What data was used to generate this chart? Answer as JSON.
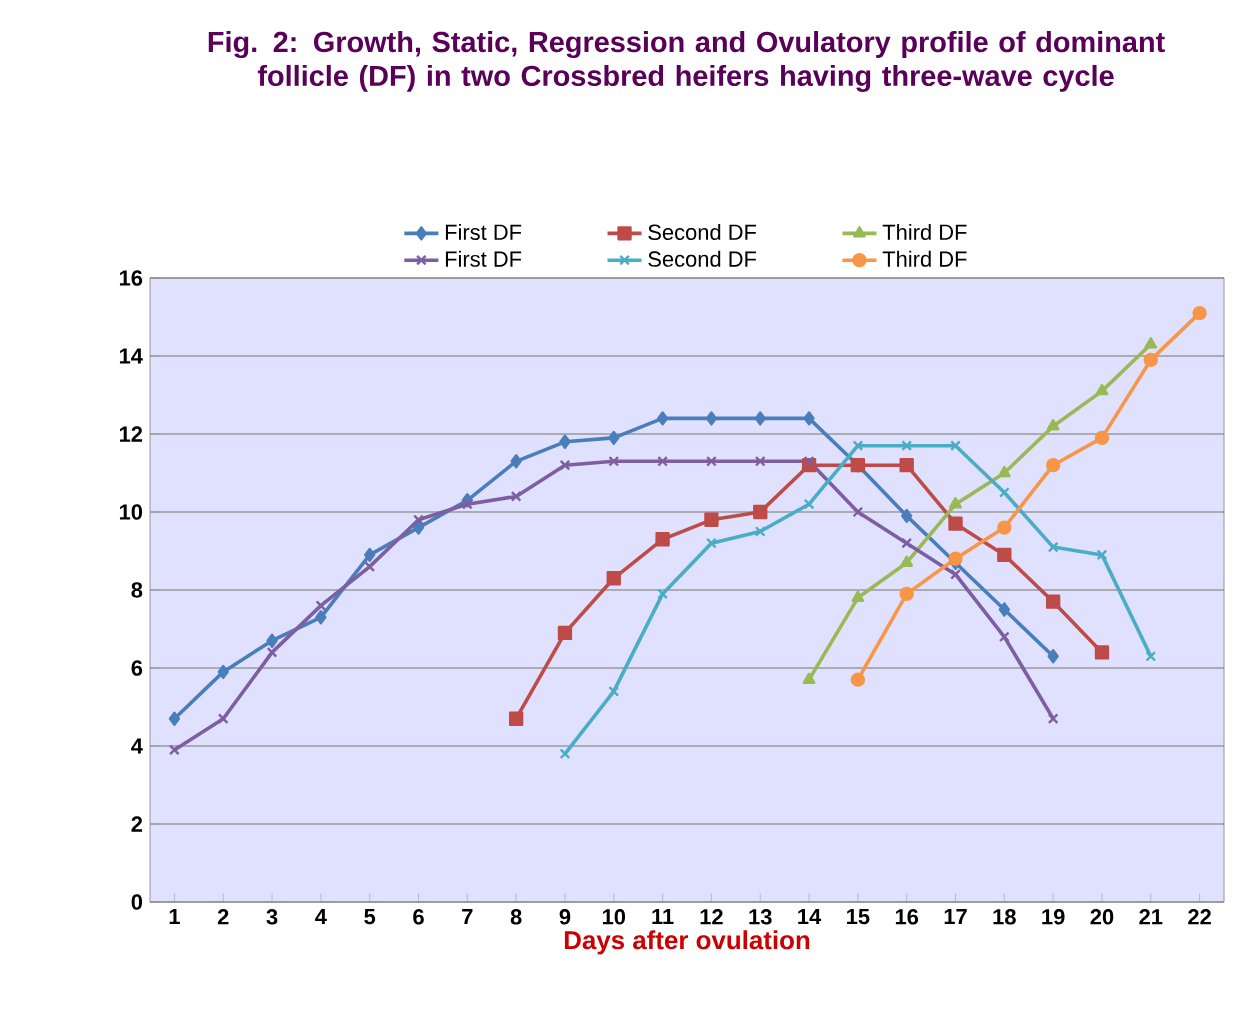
{
  "chart_data": {
    "type": "line",
    "title": "Fig. 2: Growth, Static, Regression and Ovulatory profile of dominant follicle (DF) in two Crossbred heifers having three-wave cycle",
    "xlabel": "Days after ovulation",
    "categories": [
      "1",
      "2",
      "3",
      "4",
      "5",
      "6",
      "7",
      "8",
      "9",
      "10",
      "11",
      "12",
      "13",
      "14",
      "15",
      "16",
      "17",
      "18",
      "19",
      "20",
      "21",
      "22"
    ],
    "ylim": [
      0,
      16
    ],
    "yticks": [
      0,
      2,
      4,
      6,
      8,
      10,
      12,
      14,
      16
    ],
    "grid": "y",
    "legend": "top",
    "series": [
      {
        "name": "First DF",
        "color": "#4a7ebb",
        "marker": "diamond",
        "values": [
          4.7,
          5.9,
          6.7,
          7.3,
          8.9,
          9.6,
          10.3,
          11.3,
          11.8,
          11.9,
          12.4,
          12.4,
          12.4,
          12.4,
          11.2,
          9.9,
          8.7,
          7.5,
          6.3,
          null,
          null,
          null
        ]
      },
      {
        "name": "Second DF",
        "color": "#be4b48",
        "marker": "square",
        "values": [
          null,
          null,
          null,
          null,
          null,
          null,
          null,
          4.7,
          6.9,
          8.3,
          9.3,
          9.8,
          10.0,
          11.2,
          11.2,
          11.2,
          9.7,
          8.9,
          7.7,
          6.4,
          null,
          null
        ]
      },
      {
        "name": "Third DF",
        "color": "#98b954",
        "marker": "triangle",
        "values": [
          null,
          null,
          null,
          null,
          null,
          null,
          null,
          null,
          null,
          null,
          null,
          null,
          null,
          5.7,
          7.8,
          8.7,
          10.2,
          11.0,
          12.2,
          13.1,
          14.3,
          null
        ]
      },
      {
        "name": "First DF",
        "color": "#7d5fa0",
        "marker": "cross",
        "values": [
          3.9,
          4.7,
          6.4,
          7.6,
          8.6,
          9.8,
          10.2,
          10.4,
          11.2,
          11.3,
          11.3,
          11.3,
          11.3,
          11.3,
          10.0,
          9.2,
          8.4,
          6.8,
          4.7,
          null,
          null,
          null
        ]
      },
      {
        "name": "Second DF",
        "color": "#4bacc6",
        "marker": "cross",
        "values": [
          null,
          null,
          null,
          null,
          null,
          null,
          null,
          null,
          3.8,
          5.4,
          7.9,
          9.2,
          9.5,
          10.2,
          11.7,
          11.7,
          11.7,
          10.5,
          9.1,
          8.9,
          6.3,
          null
        ]
      },
      {
        "name": "Third DF",
        "color": "#f79646",
        "marker": "circle",
        "values": [
          null,
          null,
          null,
          null,
          null,
          null,
          null,
          null,
          null,
          null,
          null,
          null,
          null,
          null,
          5.7,
          7.9,
          8.8,
          9.6,
          11.2,
          11.9,
          13.9,
          15.1
        ]
      }
    ]
  }
}
